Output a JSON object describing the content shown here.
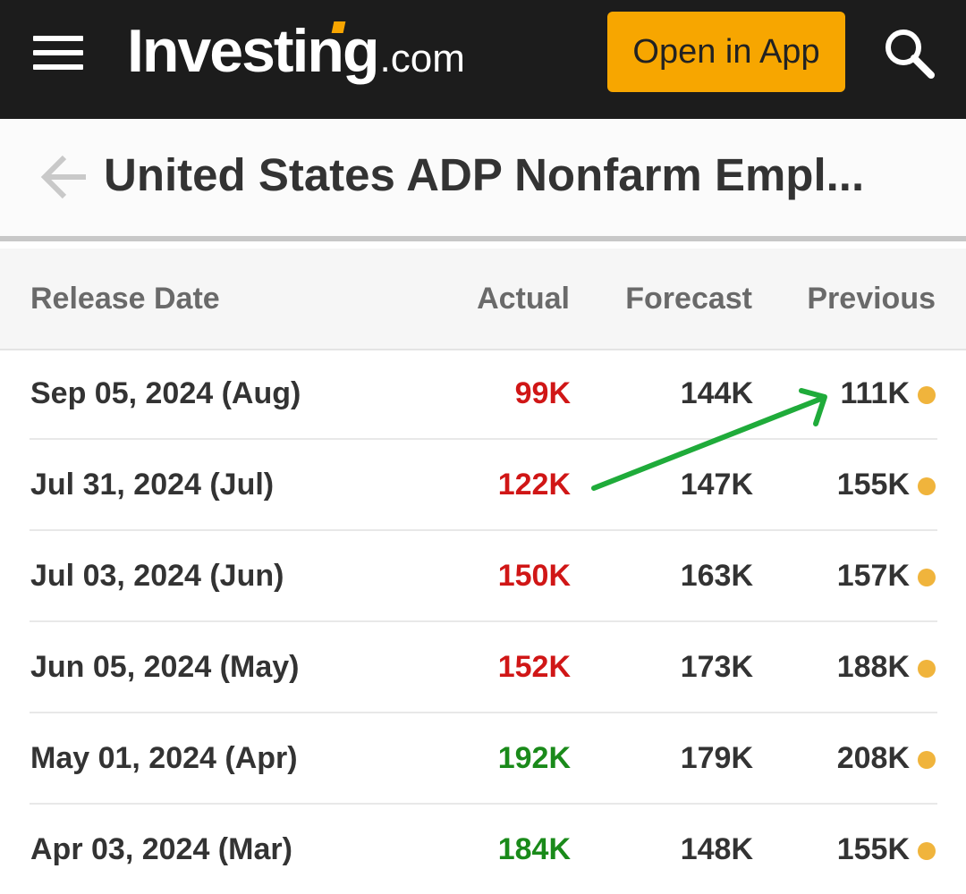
{
  "header": {
    "logo_main": "Investing",
    "logo_tld": ".com",
    "open_app_label": "Open in App"
  },
  "page": {
    "title": "United States ADP Nonfarm Empl..."
  },
  "table": {
    "columns": [
      "Release Date",
      "Actual",
      "Forecast",
      "Previous"
    ],
    "rows": [
      {
        "date": "Sep 05, 2024 (Aug)",
        "actual": "99K",
        "forecast": "144K",
        "previous": "111K"
      },
      {
        "date": "Jul 31, 2024 (Jul)",
        "actual": "122K",
        "forecast": "147K",
        "previous": "155K"
      },
      {
        "date": "Jul 03, 2024 (Jun)",
        "actual": "150K",
        "forecast": "163K",
        "previous": "157K"
      },
      {
        "date": "Jun 05, 2024 (May)",
        "actual": "152K",
        "forecast": "173K",
        "previous": "188K"
      },
      {
        "date": "May 01, 2024 (Apr)",
        "actual": "192K",
        "forecast": "179K",
        "previous": "208K"
      },
      {
        "date": "Apr 03, 2024 (Mar)",
        "actual": "184K",
        "forecast": "148K",
        "previous": "155K"
      }
    ]
  },
  "colors": {
    "header_bg": "#1c1c1c",
    "accent": "#f7a600",
    "actual_below": "#d01616",
    "actual_above": "#1a8a1a",
    "revision_dot": "#f0b43c",
    "annotation_arrow": "#1fab3a"
  },
  "icons": [
    "hamburger-menu-icon",
    "search-icon",
    "back-arrow-icon",
    "revision-dot-icon"
  ]
}
